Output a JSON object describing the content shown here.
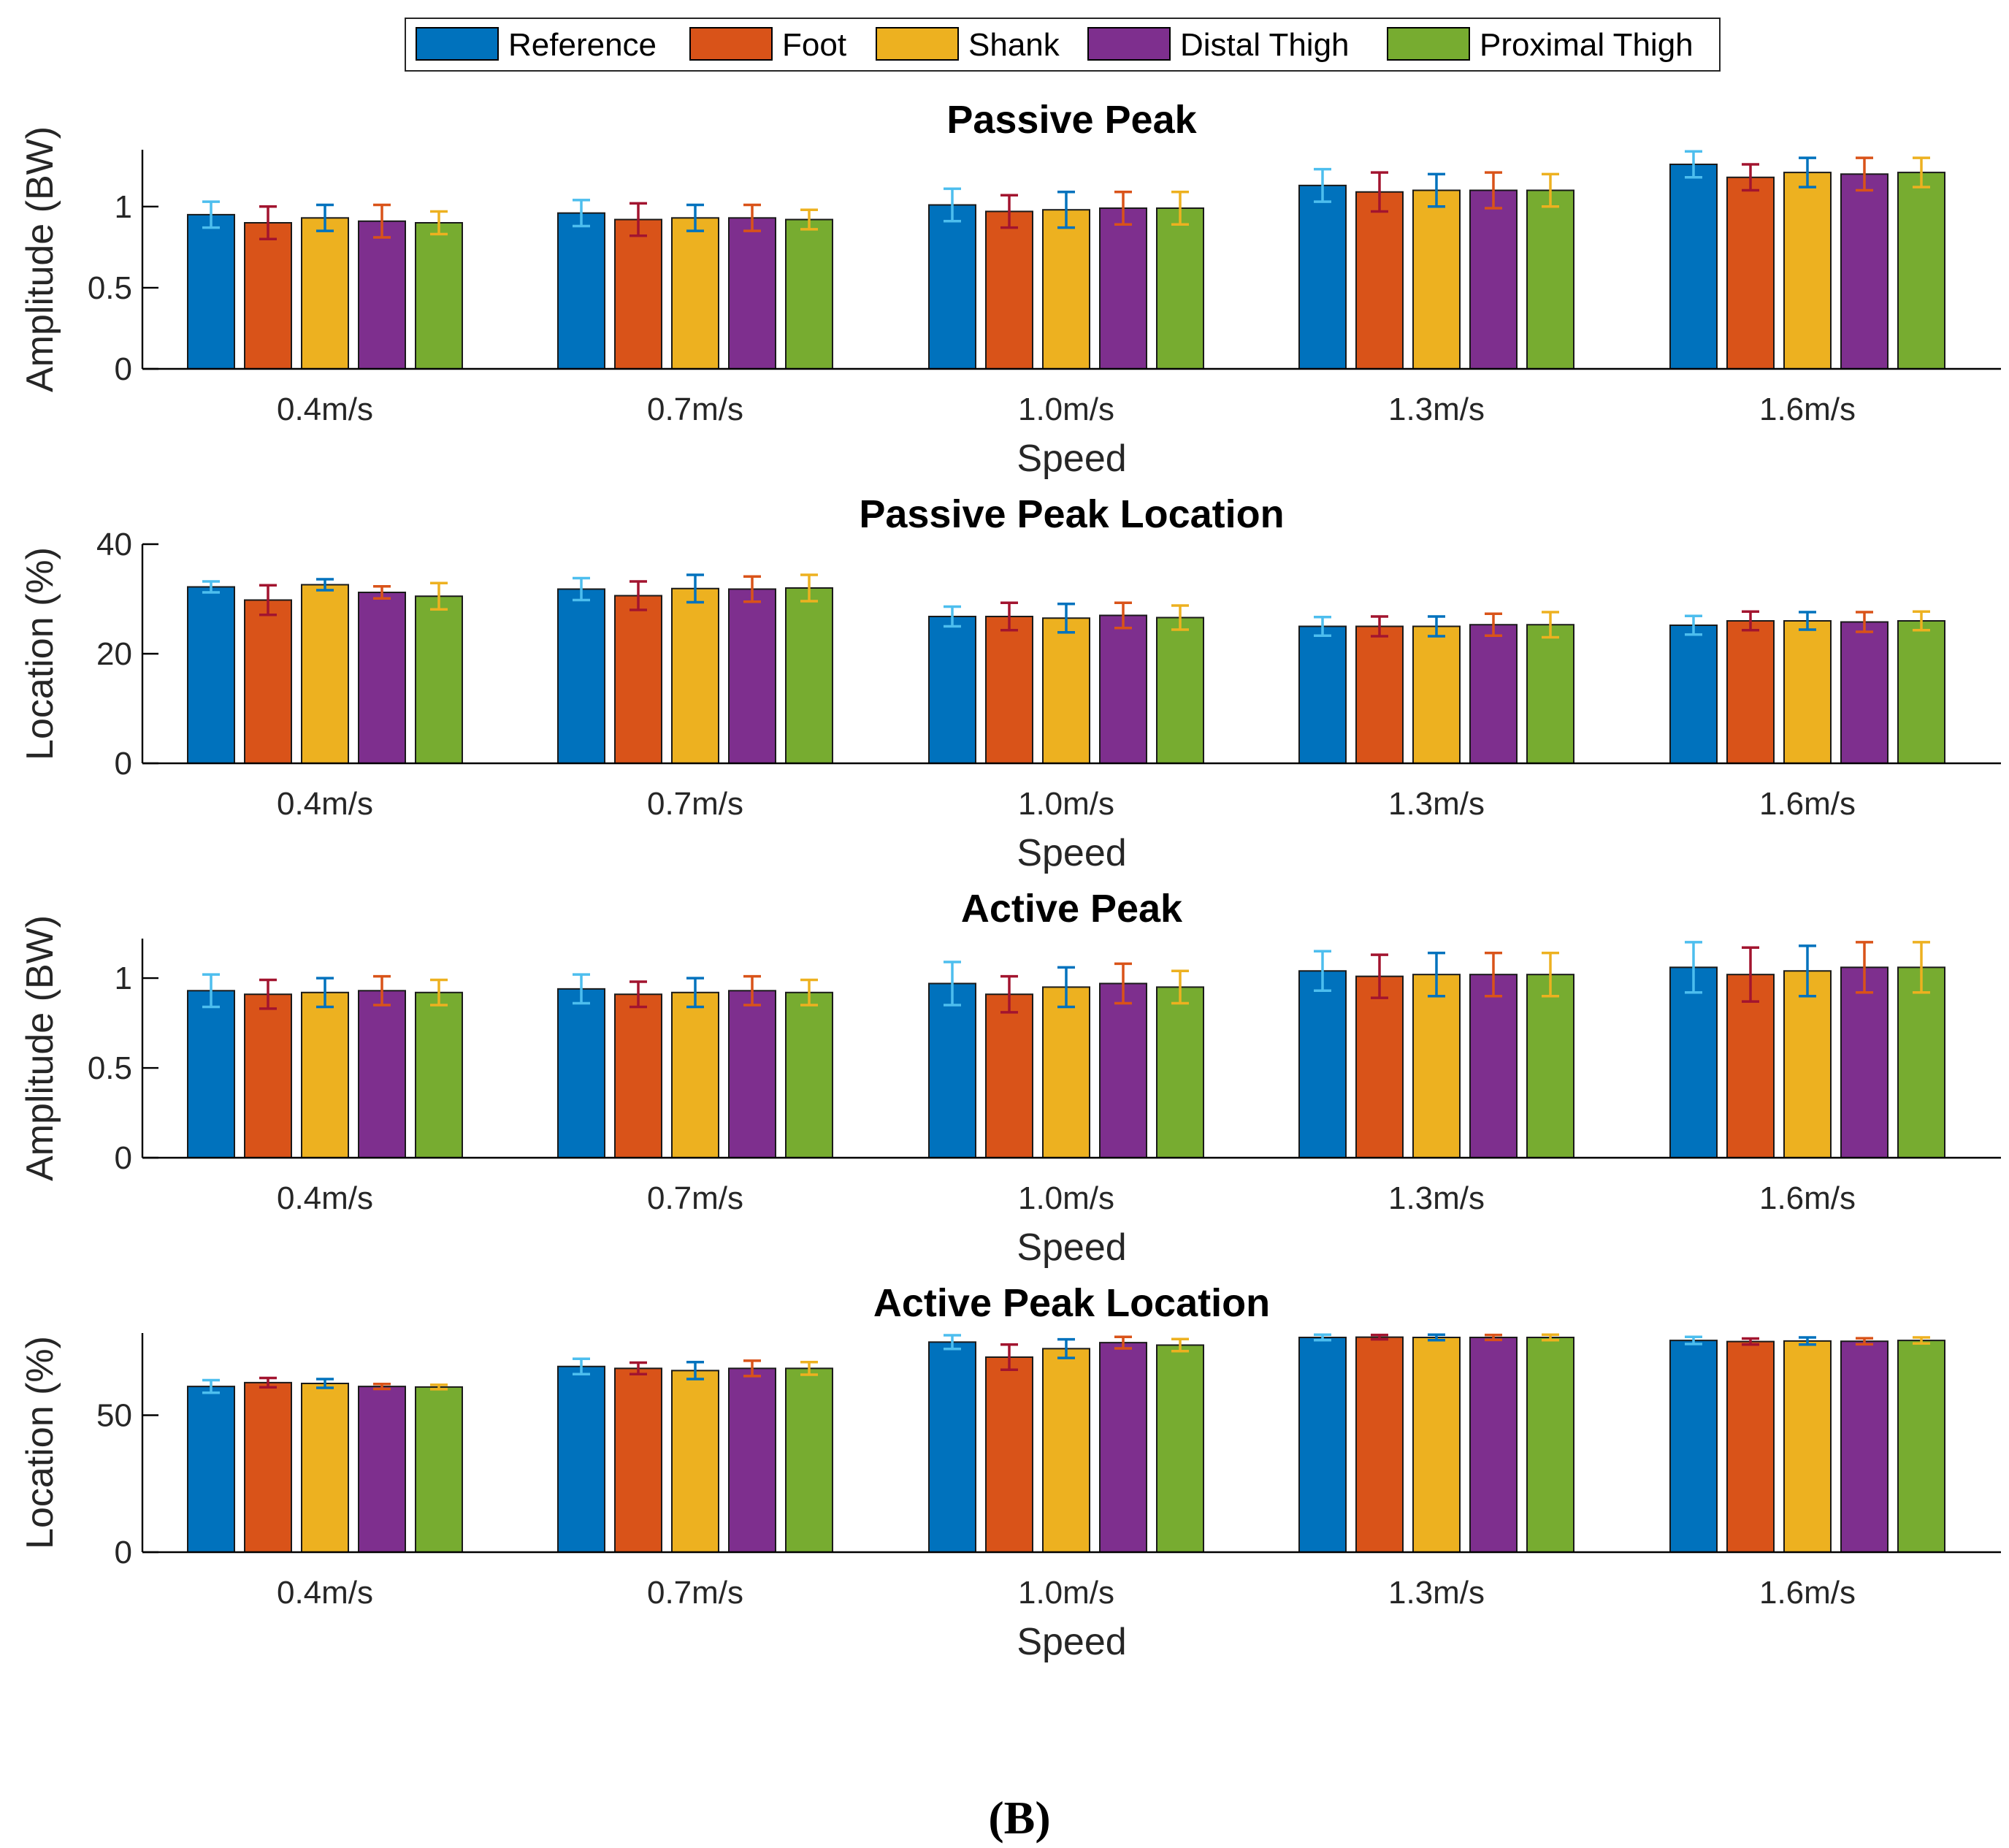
{
  "legend": [
    "Reference",
    "Foot",
    "Shank",
    "Distal Thigh",
    "Proximal Thigh"
  ],
  "colors": [
    "#0072bd",
    "#d95319",
    "#edb120",
    "#7e2f8e",
    "#77ac30"
  ],
  "error_colors": [
    "#4dbeee",
    "#a2142f",
    "#0072bd",
    "#d95319",
    "#edb120"
  ],
  "caption": "(B)",
  "chart_data": [
    {
      "type": "bar",
      "title": "Passive Peak",
      "xlabel": "Speed",
      "ylabel": "Amplitude (BW)",
      "ylim": [
        0,
        1.35
      ],
      "yticks": [
        0,
        0.5,
        1
      ],
      "ytick_labels": [
        "0",
        "0.5",
        "1"
      ],
      "grid": false,
      "categories": [
        "0.4m/s",
        "0.7m/s",
        "1.0m/s",
        "1.3m/s",
        "1.6m/s"
      ],
      "series": [
        {
          "name": "Reference",
          "values": [
            0.95,
            0.96,
            1.01,
            1.13,
            1.26
          ],
          "errors": [
            0.08,
            0.08,
            0.1,
            0.1,
            0.08
          ]
        },
        {
          "name": "Foot",
          "values": [
            0.9,
            0.92,
            0.97,
            1.09,
            1.18
          ],
          "errors": [
            0.1,
            0.1,
            0.1,
            0.12,
            0.08
          ]
        },
        {
          "name": "Shank",
          "values": [
            0.93,
            0.93,
            0.98,
            1.1,
            1.21
          ],
          "errors": [
            0.08,
            0.08,
            0.11,
            0.1,
            0.09
          ]
        },
        {
          "name": "Distal Thigh",
          "values": [
            0.91,
            0.93,
            0.99,
            1.1,
            1.2
          ],
          "errors": [
            0.1,
            0.08,
            0.1,
            0.11,
            0.1
          ]
        },
        {
          "name": "Proximal Thigh",
          "values": [
            0.9,
            0.92,
            0.99,
            1.1,
            1.21
          ],
          "errors": [
            0.07,
            0.06,
            0.1,
            0.1,
            0.09
          ]
        }
      ]
    },
    {
      "type": "bar",
      "title": "Passive Peak Location",
      "xlabel": "Speed",
      "ylabel": "Location (%)",
      "ylim": [
        0,
        40
      ],
      "yticks": [
        0,
        20,
        40
      ],
      "ytick_labels": [
        "0",
        "20",
        "40"
      ],
      "grid": false,
      "categories": [
        "0.4m/s",
        "0.7m/s",
        "1.0m/s",
        "1.3m/s",
        "1.6m/s"
      ],
      "series": [
        {
          "name": "Reference",
          "values": [
            32.2,
            31.8,
            26.8,
            25,
            25.2
          ],
          "errors": [
            1,
            2,
            1.8,
            1.7,
            1.7
          ]
        },
        {
          "name": "Foot",
          "values": [
            29.8,
            30.6,
            26.8,
            25,
            26
          ],
          "errors": [
            2.7,
            2.6,
            2.5,
            1.8,
            1.7
          ]
        },
        {
          "name": "Shank",
          "values": [
            32.6,
            31.9,
            26.5,
            25,
            26
          ],
          "errors": [
            1,
            2.5,
            2.6,
            1.8,
            1.6
          ]
        },
        {
          "name": "Distal Thigh",
          "values": [
            31.2,
            31.8,
            27,
            25.3,
            25.8
          ],
          "errors": [
            1.1,
            2.3,
            2.3,
            2,
            1.8
          ]
        },
        {
          "name": "Proximal Thigh",
          "values": [
            30.5,
            32,
            26.6,
            25.3,
            26
          ],
          "errors": [
            2.4,
            2.4,
            2.2,
            2.3,
            1.7
          ]
        }
      ]
    },
    {
      "type": "bar",
      "title": "Active Peak",
      "xlabel": "Speed",
      "ylabel": "Amplitude (BW)",
      "ylim": [
        0,
        1.22
      ],
      "yticks": [
        0,
        0.5,
        1
      ],
      "ytick_labels": [
        "0",
        "0.5",
        "1"
      ],
      "grid": false,
      "categories": [
        "0.4m/s",
        "0.7m/s",
        "1.0m/s",
        "1.3m/s",
        "1.6m/s"
      ],
      "series": [
        {
          "name": "Reference",
          "values": [
            0.93,
            0.94,
            0.97,
            1.04,
            1.06
          ],
          "errors": [
            0.09,
            0.08,
            0.12,
            0.11,
            0.14
          ]
        },
        {
          "name": "Foot",
          "values": [
            0.91,
            0.91,
            0.91,
            1.01,
            1.02
          ],
          "errors": [
            0.08,
            0.07,
            0.1,
            0.12,
            0.15
          ]
        },
        {
          "name": "Shank",
          "values": [
            0.92,
            0.92,
            0.95,
            1.02,
            1.04
          ],
          "errors": [
            0.08,
            0.08,
            0.11,
            0.12,
            0.14
          ]
        },
        {
          "name": "Distal Thigh",
          "values": [
            0.93,
            0.93,
            0.97,
            1.02,
            1.06
          ],
          "errors": [
            0.08,
            0.08,
            0.11,
            0.12,
            0.14
          ]
        },
        {
          "name": "Proximal Thigh",
          "values": [
            0.92,
            0.92,
            0.95,
            1.02,
            1.06
          ],
          "errors": [
            0.07,
            0.07,
            0.09,
            0.12,
            0.14
          ]
        }
      ]
    },
    {
      "type": "bar",
      "title": "Active Peak Location",
      "xlabel": "Speed",
      "ylabel": "Location (%)",
      "ylim": [
        0,
        80
      ],
      "yticks": [
        0,
        50
      ],
      "ytick_labels": [
        "0",
        "50"
      ],
      "grid": false,
      "categories": [
        "0.4m/s",
        "0.7m/s",
        "1.0m/s",
        "1.3m/s",
        "1.6m/s"
      ],
      "series": [
        {
          "name": "Reference",
          "values": [
            60.5,
            67.8,
            76.7,
            78.4,
            77.3
          ],
          "errors": [
            2.3,
            2.8,
            2.5,
            1,
            1.3
          ]
        },
        {
          "name": "Foot",
          "values": [
            61.9,
            67.1,
            71.2,
            78.5,
            76.9
          ],
          "errors": [
            1.7,
            2.1,
            4.6,
            0.8,
            1.1
          ]
        },
        {
          "name": "Shank",
          "values": [
            61.6,
            66.3,
            74.3,
            78.4,
            77.1
          ],
          "errors": [
            1.6,
            3.1,
            3.4,
            1,
            1.3
          ]
        },
        {
          "name": "Distal Thigh",
          "values": [
            60.5,
            67.1,
            76.5,
            78.4,
            77
          ],
          "errors": [
            0.9,
            2.8,
            2.1,
            0.9,
            1.1
          ]
        },
        {
          "name": "Proximal Thigh",
          "values": [
            60.3,
            67.1,
            75.6,
            78.4,
            77.3
          ],
          "errors": [
            0.8,
            2.3,
            2.2,
            1,
            1.1
          ]
        }
      ]
    }
  ]
}
